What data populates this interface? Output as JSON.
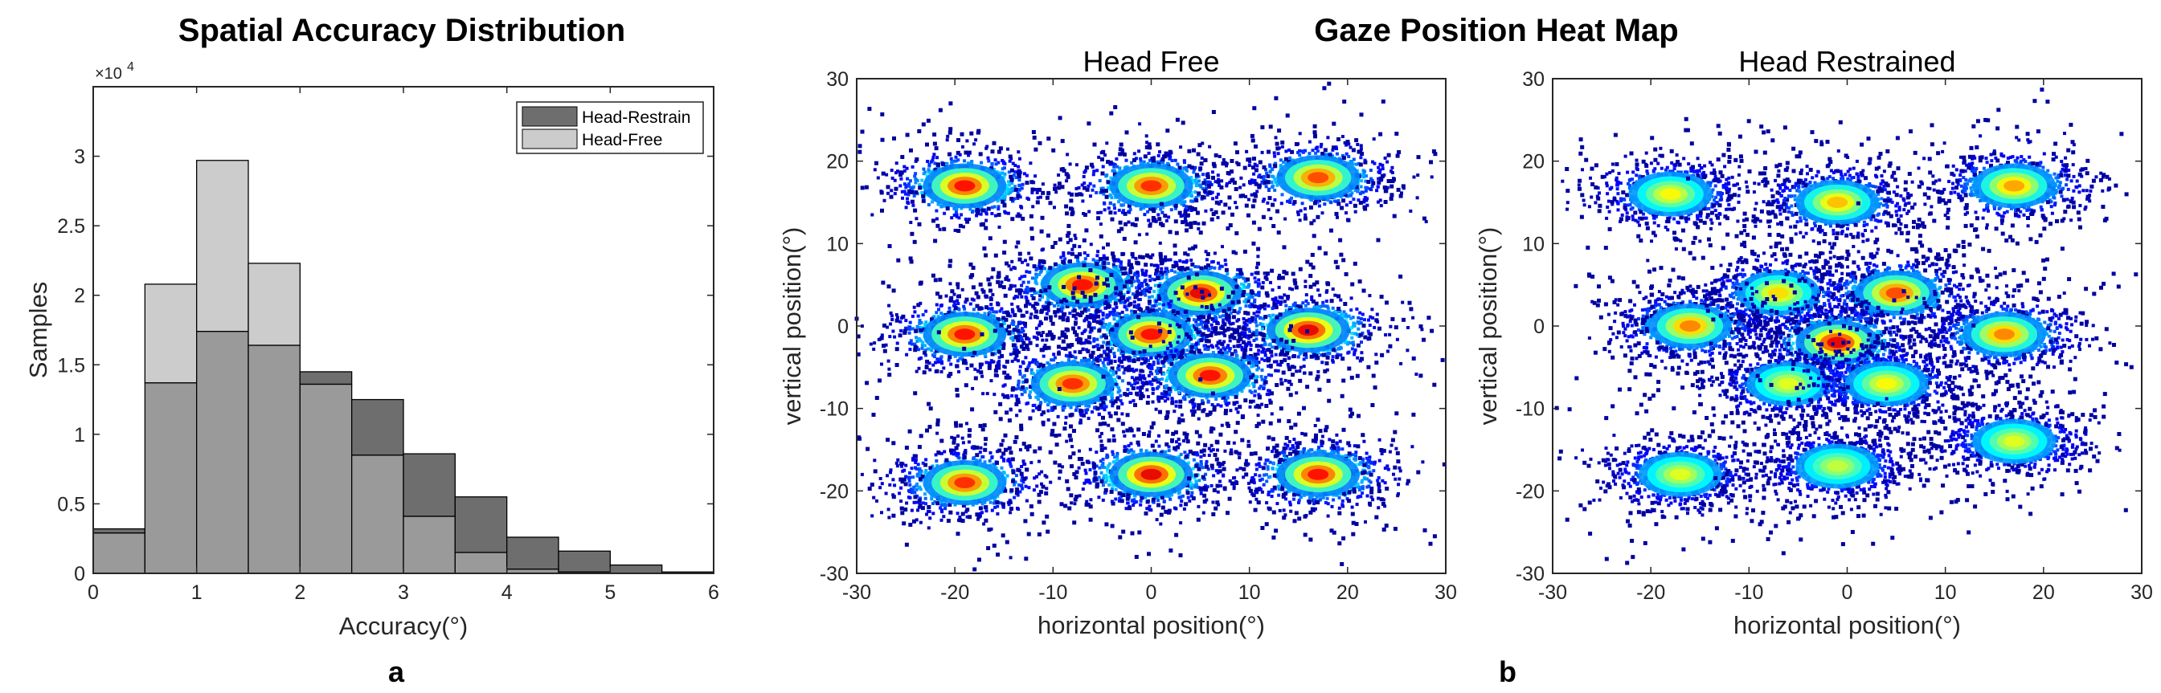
{
  "figure": {
    "left_title": "Spatial Accuracy Distribution",
    "right_title": "Gaze Position Heat Map",
    "panel_a": "a",
    "panel_b": "b"
  },
  "colors": {
    "head_restrain": "#6e6e6e",
    "head_free": "#cccccc",
    "overlap": "#9a9a9a",
    "heat_low": "#0000a0",
    "heat_high": "#d40000"
  },
  "chart_data": [
    {
      "type": "bar",
      "title": "Spatial Accuracy Distribution",
      "xlabel": "Accuracy(°)",
      "ylabel": "Samples",
      "y_exponent_label": "×10",
      "y_exponent": "4",
      "bin_edges": [
        0,
        0.5,
        1,
        1.5,
        2,
        2.5,
        3,
        3.5,
        4,
        4.5,
        5,
        5.5,
        6
      ],
      "series": [
        {
          "name": "Head-Restrain",
          "values": [
            3200,
            13700,
            17400,
            16400,
            14500,
            12500,
            8600,
            5500,
            2600,
            1600,
            600,
            100
          ]
        },
        {
          "name": "Head-Free",
          "values": [
            2900,
            20800,
            29700,
            22300,
            13600,
            8500,
            4100,
            1500,
            300,
            100,
            0,
            0
          ]
        }
      ],
      "xlim": [
        0,
        6
      ],
      "ylim": [
        0,
        35000
      ],
      "xticks": [
        "0",
        "1",
        "2",
        "3",
        "4",
        "5",
        "6"
      ],
      "yticks": [
        "0",
        "0.5",
        "1",
        "1.5",
        "2",
        "2.5",
        "3"
      ],
      "legend": "top-right",
      "grid": false
    },
    {
      "type": "heatmap",
      "title": "Head Free",
      "xlabel": "horizontal position(°)",
      "ylabel": "vertical position(°)",
      "xlim": [
        -30,
        30
      ],
      "ylim": [
        -30,
        30
      ],
      "xticks": [
        "-30",
        "-20",
        "-10",
        "0",
        "10",
        "20",
        "30"
      ],
      "yticks": [
        "-30",
        "-20",
        "-10",
        "0",
        "10",
        "20",
        "30"
      ],
      "clusters": [
        {
          "x": -19,
          "y": 17,
          "intensity": 0.95
        },
        {
          "x": 0,
          "y": 17,
          "intensity": 0.9
        },
        {
          "x": 17,
          "y": 18,
          "intensity": 0.85
        },
        {
          "x": -7,
          "y": 5,
          "intensity": 0.95
        },
        {
          "x": 5,
          "y": 4,
          "intensity": 1.0
        },
        {
          "x": -19,
          "y": -1,
          "intensity": 0.95
        },
        {
          "x": 0,
          "y": -1,
          "intensity": 0.95
        },
        {
          "x": 16,
          "y": -0.5,
          "intensity": 1.0
        },
        {
          "x": -8,
          "y": -7,
          "intensity": 0.9
        },
        {
          "x": 6,
          "y": -6,
          "intensity": 0.95
        },
        {
          "x": -19,
          "y": -19,
          "intensity": 0.9
        },
        {
          "x": 0,
          "y": -18,
          "intensity": 1.0
        },
        {
          "x": 17,
          "y": -18,
          "intensity": 0.95
        }
      ]
    },
    {
      "type": "heatmap",
      "title": "Head Restrained",
      "xlabel": "horizontal position(°)",
      "ylabel": "vertical position(°)",
      "xlim": [
        -30,
        30
      ],
      "ylim": [
        -30,
        30
      ],
      "xticks": [
        "-30",
        "-20",
        "-10",
        "0",
        "10",
        "20",
        "30"
      ],
      "yticks": [
        "-30",
        "-20",
        "-10",
        "0",
        "10",
        "20",
        "30"
      ],
      "clusters": [
        {
          "x": -18,
          "y": 16,
          "intensity": 0.55
        },
        {
          "x": -1,
          "y": 15,
          "intensity": 0.65
        },
        {
          "x": 17,
          "y": 17,
          "intensity": 0.7
        },
        {
          "x": -7,
          "y": 4,
          "intensity": 0.6
        },
        {
          "x": 5,
          "y": 4,
          "intensity": 0.85
        },
        {
          "x": -16,
          "y": 0,
          "intensity": 0.75
        },
        {
          "x": -1,
          "y": -2,
          "intensity": 1.0
        },
        {
          "x": 16,
          "y": -1,
          "intensity": 0.75
        },
        {
          "x": -6,
          "y": -7,
          "intensity": 0.5
        },
        {
          "x": 4,
          "y": -7,
          "intensity": 0.55
        },
        {
          "x": -17,
          "y": -18,
          "intensity": 0.5
        },
        {
          "x": -1,
          "y": -17,
          "intensity": 0.45
        },
        {
          "x": 17,
          "y": -14,
          "intensity": 0.5
        }
      ]
    }
  ]
}
